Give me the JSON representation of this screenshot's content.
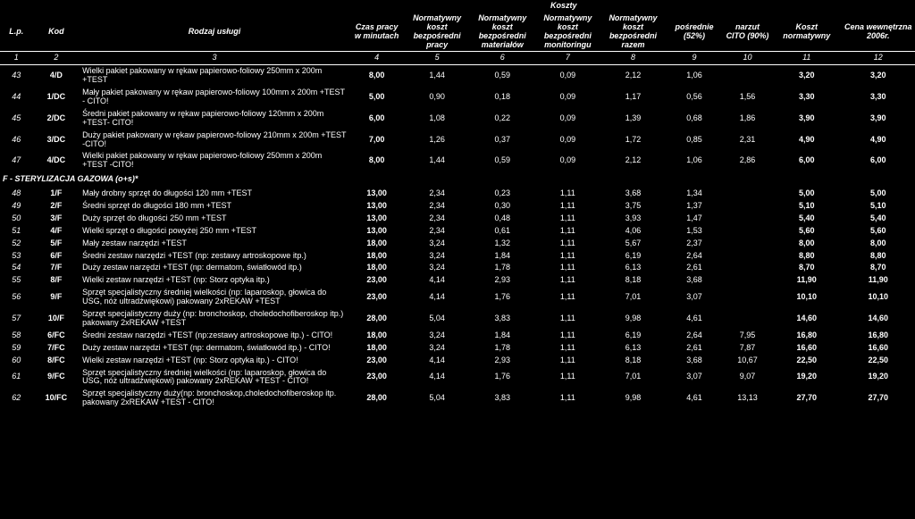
{
  "superHeader": "Koszty",
  "headers": {
    "lp": "L.p.",
    "kod": "Kod",
    "rod": "Rodzaj usługi",
    "czas": "Czas pracy w minutach",
    "c5": "Normatywny koszt bezpośredni pracy",
    "c6": "Normatywny koszt bezpośredni materiałów",
    "c7": "Normatywny koszt bezpośredni monitoringu",
    "c8": "Normatywny koszt bezpośredni razem",
    "c9": "pośrednie (52%)",
    "c10": "narzut CITO (90%)",
    "c11": "Koszt normatywny",
    "c12": "Cena wewnętrzna 2006r."
  },
  "numrow": [
    "1",
    "2",
    "3",
    "4",
    "5",
    "6",
    "7",
    "8",
    "9",
    "10",
    "11",
    "12"
  ],
  "sectionF": "F - STERYLIZACJA GAZOWA (o+s)*",
  "rows": [
    {
      "lp": "43",
      "kod": "4/D",
      "rod": "Wielki pakiet pakowany w rękaw papierowo-foliowy 250mm x 200m +TEST",
      "czas": "8,00",
      "c5": "1,44",
      "c6": "0,59",
      "c7": "0,09",
      "c8": "2,12",
      "c9": "1,06",
      "c10": "",
      "c11": "3,20",
      "c12": "3,20"
    },
    {
      "lp": "44",
      "kod": "1/DC",
      "rod": "Mały pakiet pakowany w rękaw papierowo-foliowy 100mm x 200m +TEST - CITO!",
      "czas": "5,00",
      "c5": "0,90",
      "c6": "0,18",
      "c7": "0,09",
      "c8": "1,17",
      "c9": "0,56",
      "c10": "1,56",
      "c11": "3,30",
      "c12": "3,30"
    },
    {
      "lp": "45",
      "kod": "2/DC",
      "rod": "Średni pakiet pakowany w rękaw papierowo-foliowy 120mm x 200m +TEST- CITO!",
      "czas": "6,00",
      "c5": "1,08",
      "c6": "0,22",
      "c7": "0,09",
      "c8": "1,39",
      "c9": "0,68",
      "c10": "1,86",
      "c11": "3,90",
      "c12": "3,90"
    },
    {
      "lp": "46",
      "kod": "3/DC",
      "rod": "Duży pakiet pakowany w rękaw papierowo-foliowy 210mm x 200m +TEST -CITO!",
      "czas": "7,00",
      "c5": "1,26",
      "c6": "0,37",
      "c7": "0,09",
      "c8": "1,72",
      "c9": "0,85",
      "c10": "2,31",
      "c11": "4,90",
      "c12": "4,90"
    },
    {
      "lp": "47",
      "kod": "4/DC",
      "rod": "Wielki pakiet pakowany w rękaw papierowo-foliowy 250mm x 200m +TEST -CITO!",
      "czas": "8,00",
      "c5": "1,44",
      "c6": "0,59",
      "c7": "0,09",
      "c8": "2,12",
      "c9": "1,06",
      "c10": "2,86",
      "c11": "6,00",
      "c12": "6,00"
    },
    {
      "section": true,
      "rod": "SECTION_F"
    },
    {
      "lp": "48",
      "kod": "1/F",
      "rod": "Mały drobny sprzęt do długości 120 mm +TEST",
      "czas": "13,00",
      "c5": "2,34",
      "c6": "0,23",
      "c7": "1,11",
      "c8": "3,68",
      "c9": "1,34",
      "c10": "",
      "c11": "5,00",
      "c12": "5,00"
    },
    {
      "lp": "49",
      "kod": "2/F",
      "rod": "Średni sprzęt do długości 180 mm +TEST",
      "czas": "13,00",
      "c5": "2,34",
      "c6": "0,30",
      "c7": "1,11",
      "c8": "3,75",
      "c9": "1,37",
      "c10": "",
      "c11": "5,10",
      "c12": "5,10"
    },
    {
      "lp": "50",
      "kod": "3/F",
      "rod": "Duży sprzęt do długości 250 mm +TEST",
      "czas": "13,00",
      "c5": "2,34",
      "c6": "0,48",
      "c7": "1,11",
      "c8": "3,93",
      "c9": "1,47",
      "c10": "",
      "c11": "5,40",
      "c12": "5,40"
    },
    {
      "lp": "51",
      "kod": "4/F",
      "rod": "Wielki sprzęt o długości powyżej 250 mm +TEST",
      "czas": "13,00",
      "c5": "2,34",
      "c6": "0,61",
      "c7": "1,11",
      "c8": "4,06",
      "c9": "1,53",
      "c10": "",
      "c11": "5,60",
      "c12": "5,60"
    },
    {
      "lp": "52",
      "kod": "5/F",
      "rod": "Mały zestaw narzędzi +TEST",
      "czas": "18,00",
      "c5": "3,24",
      "c6": "1,32",
      "c7": "1,11",
      "c8": "5,67",
      "c9": "2,37",
      "c10": "",
      "c11": "8,00",
      "c12": "8,00"
    },
    {
      "lp": "53",
      "kod": "6/F",
      "rod": "Średni zestaw narzędzi +TEST (np: zestawy artroskopowe itp.)",
      "czas": "18,00",
      "c5": "3,24",
      "c6": "1,84",
      "c7": "1,11",
      "c8": "6,19",
      "c9": "2,64",
      "c10": "",
      "c11": "8,80",
      "c12": "8,80"
    },
    {
      "lp": "54",
      "kod": "7/F",
      "rod": "Duży zestaw narzędzi +TEST (np: dermatom, światłowód itp.)",
      "czas": "18,00",
      "c5": "3,24",
      "c6": "1,78",
      "c7": "1,11",
      "c8": "6,13",
      "c9": "2,61",
      "c10": "",
      "c11": "8,70",
      "c12": "8,70"
    },
    {
      "lp": "55",
      "kod": "8/F",
      "rod": "Wielki zestaw narzędzi +TEST (np: Storz optyka itp.)",
      "czas": "23,00",
      "c5": "4,14",
      "c6": "2,93",
      "c7": "1,11",
      "c8": "8,18",
      "c9": "3,68",
      "c10": "",
      "c11": "11,90",
      "c12": "11,90"
    },
    {
      "lp": "56",
      "kod": "9/F",
      "rod": "Sprzęt specjalistyczny średniej wielkości (np: laparoskop, głowica do USG, nóż ultradźwiękowi) pakowany 2xREKAW +TEST",
      "czas": "23,00",
      "c5": "4,14",
      "c6": "1,76",
      "c7": "1,11",
      "c8": "7,01",
      "c9": "3,07",
      "c10": "",
      "c11": "10,10",
      "c12": "10,10"
    },
    {
      "lp": "57",
      "kod": "10/F",
      "rod": "Sprzęt specjalistyczny duży (np: bronchoskop, choledochofiberoskop itp.) pakowany 2xREKAW +TEST",
      "czas": "28,00",
      "c5": "5,04",
      "c6": "3,83",
      "c7": "1,11",
      "c8": "9,98",
      "c9": "4,61",
      "c10": "",
      "c11": "14,60",
      "c12": "14,60"
    },
    {
      "lp": "58",
      "kod": "6/FC",
      "rod": "Średni zestaw narzędzi +TEST (np:zestawy artroskopowe itp.) - CITO!",
      "czas": "18,00",
      "c5": "3,24",
      "c6": "1,84",
      "c7": "1,11",
      "c8": "6,19",
      "c9": "2,64",
      "c10": "7,95",
      "c11": "16,80",
      "c12": "16,80"
    },
    {
      "lp": "59",
      "kod": "7/FC",
      "rod": "Duży zestaw narzędzi +TEST (np: dermatom, światłowód itp.) - CITO!",
      "czas": "18,00",
      "c5": "3,24",
      "c6": "1,78",
      "c7": "1,11",
      "c8": "6,13",
      "c9": "2,61",
      "c10": "7,87",
      "c11": "16,60",
      "c12": "16,60"
    },
    {
      "lp": "60",
      "kod": "8/FC",
      "rod": "Wielki zestaw narzędzi +TEST (np: Storz optyka itp.) - CITO!",
      "czas": "23,00",
      "c5": "4,14",
      "c6": "2,93",
      "c7": "1,11",
      "c8": "8,18",
      "c9": "3,68",
      "c10": "10,67",
      "c11": "22,50",
      "c12": "22,50"
    },
    {
      "lp": "61",
      "kod": "9/FC",
      "rod": "Sprzęt specjalistyczny średniej wielkości (np: laparoskop, głowica do USG, nóż ultradźwiękowi) pakowany 2xREKAW +TEST - CITO!",
      "czas": "23,00",
      "c5": "4,14",
      "c6": "1,76",
      "c7": "1,11",
      "c8": "7,01",
      "c9": "3,07",
      "c10": "9,07",
      "c11": "19,20",
      "c12": "19,20"
    },
    {
      "lp": "62",
      "kod": "10/FC",
      "rod": "Sprzęt specjalistyczny duży(np: bronchoskop,choledochofiberoskop itp. pakowany 2xREKAW +TEST - CITO!",
      "czas": "28,00",
      "c5": "5,04",
      "c6": "3,83",
      "c7": "1,11",
      "c8": "9,98",
      "c9": "4,61",
      "c10": "13,13",
      "c11": "27,70",
      "c12": "27,70"
    }
  ]
}
